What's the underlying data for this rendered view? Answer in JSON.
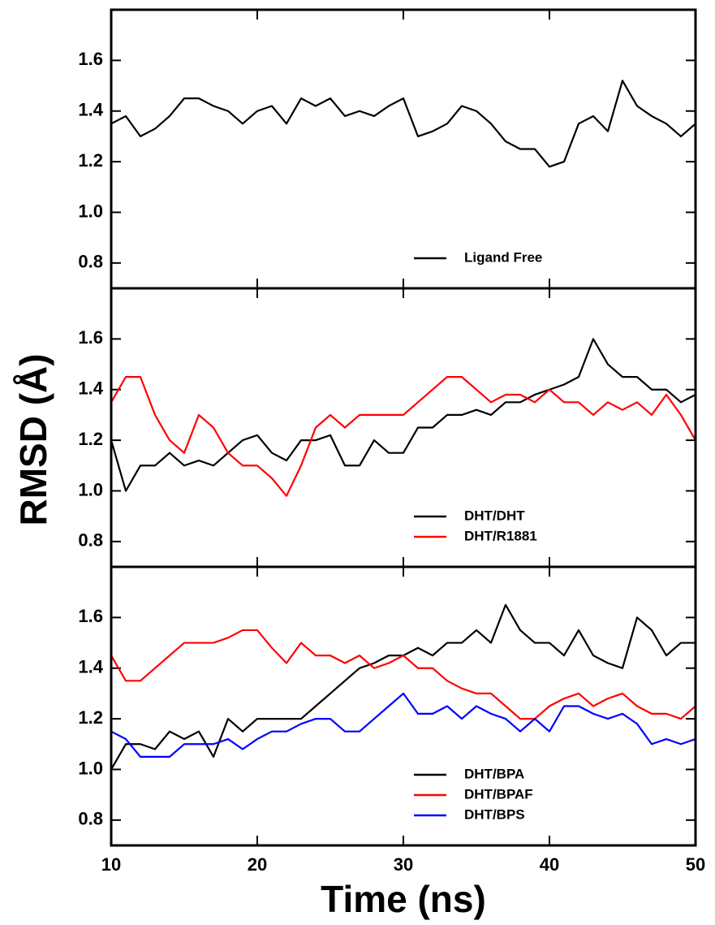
{
  "chart_data": [
    {
      "type": "line",
      "x": [
        10,
        11,
        12,
        13,
        14,
        15,
        16,
        17,
        18,
        19,
        20,
        21,
        22,
        23,
        24,
        25,
        26,
        27,
        28,
        29,
        30,
        31,
        32,
        33,
        34,
        35,
        36,
        37,
        38,
        39,
        40,
        41,
        42,
        43,
        44,
        45,
        46,
        47,
        48,
        49,
        50
      ],
      "series": [
        {
          "name": "Ligand Free",
          "color": "#000000",
          "values": [
            1.35,
            1.38,
            1.3,
            1.33,
            1.38,
            1.45,
            1.45,
            1.42,
            1.4,
            1.35,
            1.4,
            1.42,
            1.35,
            1.45,
            1.42,
            1.45,
            1.38,
            1.4,
            1.38,
            1.42,
            1.45,
            1.3,
            1.32,
            1.35,
            1.42,
            1.4,
            1.35,
            1.28,
            1.25,
            1.25,
            1.18,
            1.2,
            1.35,
            1.38,
            1.32,
            1.52,
            1.42,
            1.38,
            1.35,
            1.3,
            1.35
          ]
        }
      ],
      "xlim": [
        10,
        50
      ],
      "xticks": [
        10,
        20,
        30,
        40,
        50
      ],
      "ylim": [
        0.7,
        1.8
      ],
      "yticks": [
        0.8,
        {
          "value": 1,
          "label": "1.0"
        },
        1.2,
        1.4,
        1.6
      ],
      "legend": "lower right"
    },
    {
      "type": "line",
      "ylabel": "RMSD (Å)",
      "x": [
        10,
        11,
        12,
        13,
        14,
        15,
        16,
        17,
        18,
        19,
        20,
        21,
        22,
        23,
        24,
        25,
        26,
        27,
        28,
        29,
        30,
        31,
        32,
        33,
        34,
        35,
        36,
        37,
        38,
        39,
        40,
        41,
        42,
        43,
        44,
        45,
        46,
        47,
        48,
        49,
        50
      ],
      "series": [
        {
          "name": "DHT/DHT",
          "color": "#000000",
          "values": [
            1.2,
            1.0,
            1.1,
            1.1,
            1.15,
            1.1,
            1.12,
            1.1,
            1.15,
            1.2,
            1.22,
            1.15,
            1.12,
            1.2,
            1.2,
            1.22,
            1.1,
            1.1,
            1.2,
            1.15,
            1.15,
            1.25,
            1.25,
            1.3,
            1.3,
            1.32,
            1.3,
            1.35,
            1.35,
            1.38,
            1.4,
            1.42,
            1.45,
            1.6,
            1.5,
            1.45,
            1.45,
            1.4,
            1.4,
            1.35,
            1.38
          ]
        },
        {
          "name": "DHT/R1881",
          "color": "#ff0000",
          "values": [
            1.35,
            1.45,
            1.45,
            1.3,
            1.2,
            1.15,
            1.3,
            1.25,
            1.15,
            1.1,
            1.1,
            1.05,
            0.98,
            1.1,
            1.25,
            1.3,
            1.25,
            1.3,
            1.3,
            1.3,
            1.3,
            1.35,
            1.4,
            1.45,
            1.45,
            1.4,
            1.35,
            1.38,
            1.38,
            1.35,
            1.4,
            1.35,
            1.35,
            1.3,
            1.35,
            1.32,
            1.35,
            1.3,
            1.38,
            1.3,
            1.2
          ]
        }
      ],
      "xlim": [
        10,
        50
      ],
      "xticks": [
        10,
        20,
        30,
        40,
        50
      ],
      "ylim": [
        0.7,
        1.8
      ],
      "yticks": [
        0.8,
        {
          "value": 1,
          "label": "1.0"
        },
        1.2,
        1.4,
        1.6
      ],
      "legend": "lower right"
    },
    {
      "type": "line",
      "xlabel": "Time (ns)",
      "x": [
        10,
        11,
        12,
        13,
        14,
        15,
        16,
        17,
        18,
        19,
        20,
        21,
        22,
        23,
        24,
        25,
        26,
        27,
        28,
        29,
        30,
        31,
        32,
        33,
        34,
        35,
        36,
        37,
        38,
        39,
        40,
        41,
        42,
        43,
        44,
        45,
        46,
        47,
        48,
        49,
        50
      ],
      "series": [
        {
          "name": "DHT/BPA",
          "color": "#000000",
          "values": [
            1.0,
            1.1,
            1.1,
            1.08,
            1.15,
            1.12,
            1.15,
            1.05,
            1.2,
            1.15,
            1.2,
            1.2,
            1.2,
            1.2,
            1.25,
            1.3,
            1.35,
            1.4,
            1.42,
            1.45,
            1.45,
            1.48,
            1.45,
            1.5,
            1.5,
            1.55,
            1.5,
            1.65,
            1.55,
            1.5,
            1.5,
            1.45,
            1.55,
            1.45,
            1.42,
            1.4,
            1.6,
            1.55,
            1.45,
            1.5,
            1.5
          ]
        },
        {
          "name": "DHT/BPAF",
          "color": "#ff0000",
          "values": [
            1.45,
            1.35,
            1.35,
            1.4,
            1.45,
            1.5,
            1.5,
            1.5,
            1.52,
            1.55,
            1.55,
            1.48,
            1.42,
            1.5,
            1.45,
            1.45,
            1.42,
            1.45,
            1.4,
            1.42,
            1.45,
            1.4,
            1.4,
            1.35,
            1.32,
            1.3,
            1.3,
            1.25,
            1.2,
            1.2,
            1.25,
            1.28,
            1.3,
            1.25,
            1.28,
            1.3,
            1.25,
            1.22,
            1.22,
            1.2,
            1.25
          ]
        },
        {
          "name": "DHT/BPS",
          "color": "#0000ff",
          "values": [
            1.15,
            1.12,
            1.05,
            1.05,
            1.05,
            1.1,
            1.1,
            1.1,
            1.12,
            1.08,
            1.12,
            1.15,
            1.15,
            1.18,
            1.2,
            1.2,
            1.15,
            1.15,
            1.2,
            1.25,
            1.3,
            1.22,
            1.22,
            1.25,
            1.2,
            1.25,
            1.22,
            1.2,
            1.15,
            1.2,
            1.15,
            1.25,
            1.25,
            1.22,
            1.2,
            1.22,
            1.18,
            1.1,
            1.12,
            1.1,
            1.12
          ]
        }
      ],
      "xlim": [
        10,
        50
      ],
      "xticks": [
        10,
        20,
        30,
        40,
        50
      ],
      "ylim": [
        0.7,
        1.8
      ],
      "yticks": [
        0.8,
        {
          "value": 1,
          "label": "1.0"
        },
        1.2,
        1.4,
        1.6
      ],
      "legend": "lower right"
    }
  ]
}
